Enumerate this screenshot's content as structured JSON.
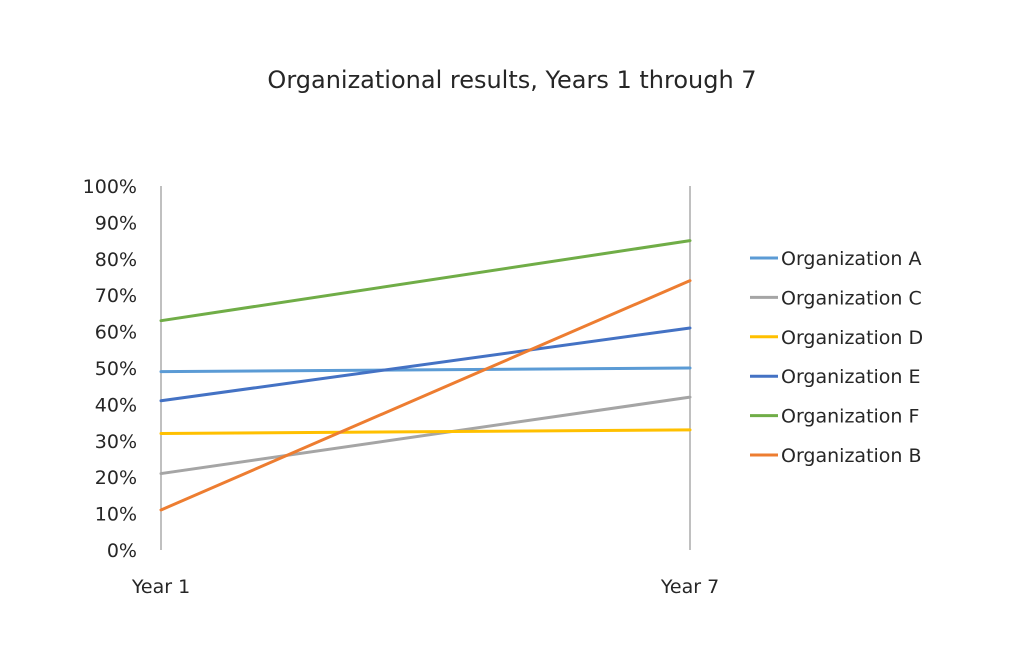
{
  "chart_data": {
    "type": "line",
    "title": "Organizational results, Years 1 through 7",
    "xlabel": "",
    "ylabel": "",
    "categories": [
      "Year 1",
      "Year 7"
    ],
    "ylim": [
      0,
      100
    ],
    "y_ticks": [
      0,
      10,
      20,
      30,
      40,
      50,
      60,
      70,
      80,
      90,
      100
    ],
    "y_tick_labels": [
      "0%",
      "10%",
      "20%",
      "30%",
      "40%",
      "50%",
      "60%",
      "70%",
      "80%",
      "90%",
      "100%"
    ],
    "grid": false,
    "legend_position": "right",
    "series": [
      {
        "name": "Organization A",
        "values": [
          49,
          50
        ],
        "color": "#5b9bd5"
      },
      {
        "name": "Organization C",
        "values": [
          21,
          42
        ],
        "color": "#a5a5a5"
      },
      {
        "name": "Organization D",
        "values": [
          32,
          33
        ],
        "color": "#ffc000"
      },
      {
        "name": "Organization E",
        "values": [
          41,
          61
        ],
        "color": "#4472c4"
      },
      {
        "name": "Organization F",
        "values": [
          63,
          85
        ],
        "color": "#70ad47"
      },
      {
        "name": "Organization B",
        "values": [
          11,
          74
        ],
        "color": "#ed7d31"
      }
    ],
    "axis_color": "#808080"
  }
}
